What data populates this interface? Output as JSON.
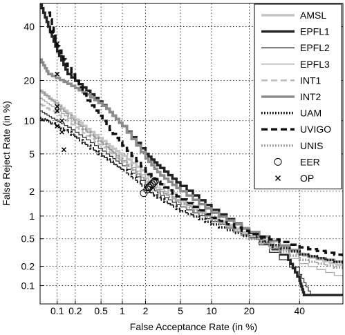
{
  "chart_data": {
    "type": "line",
    "subtype": "DET curve",
    "title": "",
    "xlabel": "False Acceptance Rate (in %)",
    "ylabel": "False Reject Rate (in %)",
    "xscale": "probit",
    "yscale": "probit",
    "xlim": [
      0.05,
      60
    ],
    "ylim": [
      0.05,
      50
    ],
    "xticks": [
      0.1,
      0.2,
      0.5,
      1,
      2,
      5,
      10,
      20,
      40
    ],
    "xtick_labels": [
      "0.1",
      "0.2",
      "0.5",
      "1",
      "2",
      "5",
      "10",
      "20",
      "40"
    ],
    "yticks": [
      0.1,
      0.2,
      0.5,
      1,
      2,
      5,
      10,
      20,
      40
    ],
    "ytick_labels": [
      "0.1",
      "0.2",
      "0.5",
      "1",
      "2",
      "5",
      "10",
      "20",
      "40"
    ],
    "grid": true,
    "legend_position": "top-right",
    "series": [
      {
        "name": "AMSL",
        "color": "#c4c4c4",
        "dash": "solid",
        "width": 3.5,
        "points": [
          [
            0.05,
            17
          ],
          [
            0.08,
            14.5
          ],
          [
            0.15,
            11.5
          ],
          [
            0.3,
            8.5
          ],
          [
            0.6,
            6.2
          ],
          [
            1,
            4.8
          ],
          [
            2,
            3.1
          ],
          [
            3,
            2.4
          ],
          [
            5,
            1.6
          ],
          [
            10,
            0.95
          ],
          [
            20,
            0.55
          ],
          [
            30,
            0.38
          ],
          [
            45,
            0.27
          ],
          [
            60,
            0.2
          ]
        ],
        "eer": [
          2.4,
          2.4
        ],
        "op": [
          0.12,
          10
        ]
      },
      {
        "name": "EPFL1",
        "color": "#222222",
        "dash": "solid",
        "width": 3.5,
        "points": [
          [
            0.05,
            50
          ],
          [
            0.07,
            40
          ],
          [
            0.1,
            30
          ],
          [
            0.15,
            22
          ],
          [
            0.3,
            17
          ],
          [
            0.6,
            12.5
          ],
          [
            1,
            9
          ],
          [
            2,
            5
          ],
          [
            3,
            3.6
          ],
          [
            5,
            2.3
          ],
          [
            10,
            1.2
          ],
          [
            20,
            0.6
          ],
          [
            35,
            0.25
          ],
          [
            40,
            0.12
          ],
          [
            42,
            0.07
          ],
          [
            50,
            0.07
          ],
          [
            60,
            0.07
          ]
        ],
        "eer": [
          2.6,
          2.6
        ],
        "op": [
          0.08,
          38
        ]
      },
      {
        "name": "EPFL2",
        "color": "#333333",
        "dash": "solid",
        "width": 1.3,
        "points": [
          [
            0.05,
            12
          ],
          [
            0.08,
            10.5
          ],
          [
            0.15,
            8.8
          ],
          [
            0.3,
            6.8
          ],
          [
            0.6,
            5
          ],
          [
            1,
            3.8
          ],
          [
            2,
            2.4
          ],
          [
            3,
            1.8
          ],
          [
            5,
            1.3
          ],
          [
            10,
            0.85
          ],
          [
            20,
            0.52
          ],
          [
            40,
            0.15
          ],
          [
            45,
            0.07
          ],
          [
            60,
            0.07
          ]
        ],
        "eer": [
          2.3,
          2.3
        ],
        "op": [
          0.12,
          8
        ]
      },
      {
        "name": "EPFL3",
        "color": "#aaaaaa",
        "dash": "solid",
        "width": 1.3,
        "points": [
          [
            0.05,
            15
          ],
          [
            0.08,
            13
          ],
          [
            0.15,
            10.5
          ],
          [
            0.3,
            8
          ],
          [
            0.6,
            5.8
          ],
          [
            1,
            4.3
          ],
          [
            2,
            2.8
          ],
          [
            3,
            2.1
          ],
          [
            5,
            1.5
          ],
          [
            10,
            0.9
          ],
          [
            20,
            0.5
          ],
          [
            40,
            0.22
          ],
          [
            60,
            0.13
          ]
        ],
        "eer": [
          2.2,
          2.2
        ],
        "op": [
          0.1,
          12
        ]
      },
      {
        "name": "INT1",
        "color": "#bbbbbb",
        "dash": "dashed",
        "width": 2.5,
        "points": [
          [
            0.05,
            13.5
          ],
          [
            0.08,
            12
          ],
          [
            0.15,
            9.8
          ],
          [
            0.3,
            7.4
          ],
          [
            0.6,
            5.4
          ],
          [
            1,
            4.1
          ],
          [
            2,
            2.6
          ],
          [
            3,
            2
          ],
          [
            5,
            1.45
          ],
          [
            10,
            0.9
          ],
          [
            20,
            0.55
          ],
          [
            40,
            0.3
          ],
          [
            60,
            0.22
          ]
        ],
        "eer": [
          2.1,
          2.1
        ],
        "op": [
          0.1,
          9
        ]
      },
      {
        "name": "INT2",
        "color": "#8c8c8c",
        "dash": "solid",
        "width": 3.5,
        "points": [
          [
            0.05,
            27
          ],
          [
            0.07,
            22
          ],
          [
            0.15,
            19
          ],
          [
            0.3,
            16
          ],
          [
            0.6,
            12.5
          ],
          [
            1,
            9
          ],
          [
            2,
            4.5
          ],
          [
            3,
            3
          ],
          [
            5,
            2
          ],
          [
            10,
            1.1
          ],
          [
            20,
            0.62
          ],
          [
            40,
            0.3
          ],
          [
            60,
            0.22
          ]
        ],
        "eer": [
          2.5,
          2.5
        ],
        "op": [
          0.1,
          22
        ]
      },
      {
        "name": "UAM",
        "color": "#111111",
        "dash": "dotted",
        "width": 3.5,
        "points": [
          [
            0.05,
            10.5
          ],
          [
            0.08,
            9.5
          ],
          [
            0.15,
            8
          ],
          [
            0.3,
            6
          ],
          [
            0.6,
            4.4
          ],
          [
            1,
            3.4
          ],
          [
            2,
            2.1
          ],
          [
            3,
            1.6
          ],
          [
            5,
            1.15
          ],
          [
            10,
            0.78
          ],
          [
            20,
            0.5
          ],
          [
            40,
            0.3
          ],
          [
            60,
            0.22
          ]
        ],
        "eer": [
          1.9,
          1.9
        ],
        "op": [
          0.13,
          5.5
        ]
      },
      {
        "name": "UVIGO",
        "color": "#111111",
        "dash": "dashed",
        "width": 3.5,
        "points": [
          [
            0.07,
            46
          ],
          [
            0.1,
            32
          ],
          [
            0.15,
            24
          ],
          [
            0.3,
            14.5
          ],
          [
            0.6,
            9
          ],
          [
            1,
            6
          ],
          [
            2,
            3.3
          ],
          [
            3,
            2.4
          ],
          [
            5,
            1.6
          ],
          [
            10,
            0.95
          ],
          [
            20,
            0.58
          ],
          [
            40,
            0.38
          ],
          [
            60,
            0.28
          ]
        ],
        "eer": [
          2.4,
          2.4
        ],
        "op": [
          0.1,
          33
        ]
      },
      {
        "name": "UNIS",
        "color": "#9a9a9a",
        "dash": "dotted",
        "width": 3.5,
        "points": [
          [
            0.05,
            17
          ],
          [
            0.08,
            14.5
          ],
          [
            0.15,
            11
          ],
          [
            0.3,
            8
          ],
          [
            0.6,
            5.8
          ],
          [
            1,
            4.2
          ],
          [
            2,
            2.5
          ],
          [
            3,
            1.95
          ],
          [
            5,
            1.4
          ],
          [
            10,
            0.88
          ],
          [
            20,
            0.5
          ],
          [
            40,
            0.25
          ],
          [
            60,
            0.18
          ]
        ],
        "eer": [
          2.2,
          2.2
        ],
        "op": [
          0.1,
          13
        ]
      }
    ],
    "legend_markers": [
      {
        "name": "EER",
        "symbol": "circle"
      },
      {
        "name": "OP",
        "symbol": "x"
      }
    ]
  }
}
